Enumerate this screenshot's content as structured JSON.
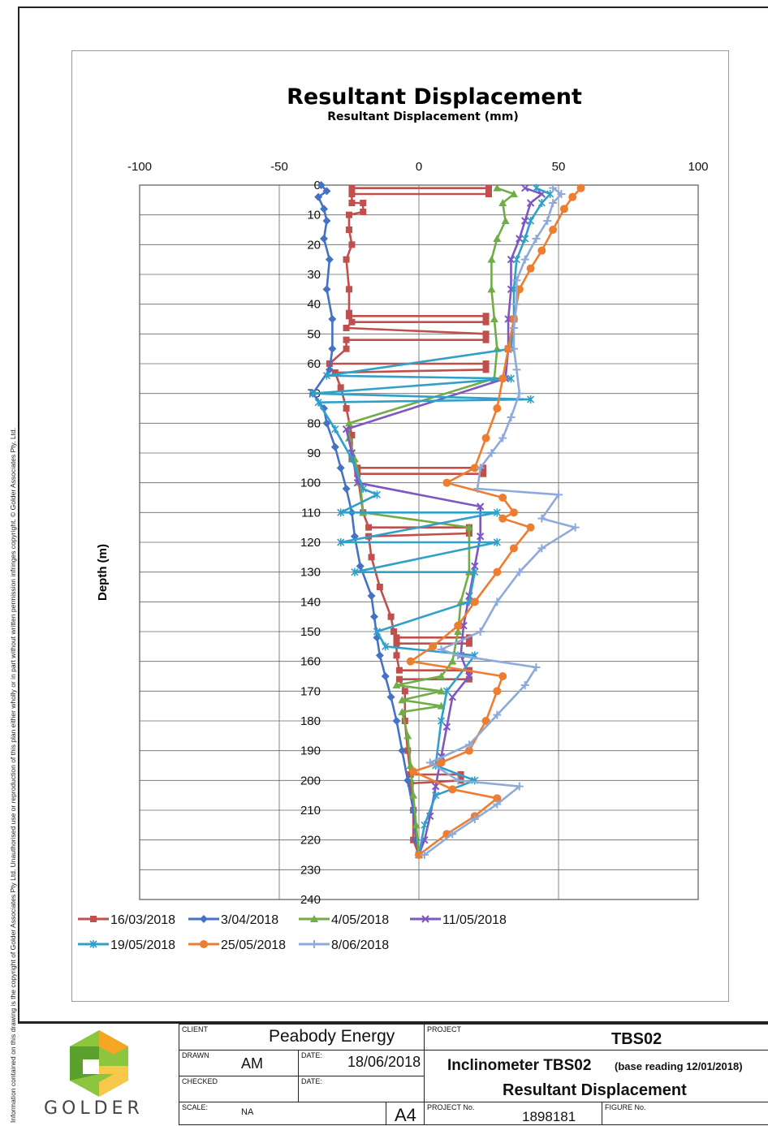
{
  "side_note": "Information contained on this drawing is the copyright of Golder Associates Pty Ltd. Unauthorised use or reproduction of this plan either wholly or in part without written permission infringes copyright. © Golder Associates Pty. Ltd.",
  "chart_data": {
    "type": "line",
    "title": "Resultant Displacement",
    "subtitle": "Resultant Displacement (mm)",
    "xlabel": "",
    "ylabel": "Depth (m)",
    "xlim": [
      -100,
      100
    ],
    "ylim": [
      0,
      240
    ],
    "y_inverted": true,
    "x_ticks": [
      -100,
      -50,
      0,
      50,
      100
    ],
    "y_ticks": [
      0,
      10,
      20,
      30,
      40,
      50,
      60,
      70,
      80,
      90,
      100,
      110,
      120,
      130,
      140,
      150,
      160,
      170,
      180,
      190,
      200,
      210,
      220,
      230,
      240
    ],
    "grid": true,
    "legend_position": "bottom",
    "series": [
      {
        "name": "16/03/2018",
        "color": "#c0504d",
        "marker": "square",
        "points": [
          [
            -24,
            1
          ],
          [
            25,
            1
          ],
          [
            25,
            3
          ],
          [
            -24,
            3
          ],
          [
            -24,
            6
          ],
          [
            -20,
            6
          ],
          [
            -20,
            9
          ],
          [
            -25,
            10
          ],
          [
            -25,
            15
          ],
          [
            -24,
            20
          ],
          [
            -26,
            25
          ],
          [
            -25,
            35
          ],
          [
            -25,
            43
          ],
          [
            -25,
            44
          ],
          [
            24,
            44
          ],
          [
            24,
            46
          ],
          [
            -24,
            46
          ],
          [
            -26,
            48
          ],
          [
            24,
            50
          ],
          [
            24,
            52
          ],
          [
            -26,
            52
          ],
          [
            -26,
            55
          ],
          [
            -32,
            60
          ],
          [
            24,
            60
          ],
          [
            24,
            62
          ],
          [
            -30,
            63
          ],
          [
            -28,
            68
          ],
          [
            -26,
            75
          ],
          [
            -24,
            84
          ],
          [
            -24,
            92
          ],
          [
            -22,
            95
          ],
          [
            23,
            95
          ],
          [
            23,
            97
          ],
          [
            -22,
            97
          ],
          [
            -20,
            110
          ],
          [
            -18,
            115
          ],
          [
            18,
            115
          ],
          [
            18,
            117
          ],
          [
            -18,
            118
          ],
          [
            -17,
            125
          ],
          [
            -14,
            135
          ],
          [
            -10,
            145
          ],
          [
            -9,
            150
          ],
          [
            -8,
            152
          ],
          [
            18,
            152
          ],
          [
            18,
            154
          ],
          [
            -8,
            154
          ],
          [
            -8,
            158
          ],
          [
            -7,
            163
          ],
          [
            18,
            163
          ],
          [
            18,
            166
          ],
          [
            -7,
            166
          ],
          [
            -5,
            170
          ],
          [
            -5,
            180
          ],
          [
            -4,
            190
          ],
          [
            -3,
            198
          ],
          [
            15,
            198
          ],
          [
            15,
            200
          ],
          [
            -3,
            201
          ],
          [
            -2,
            210
          ],
          [
            -2,
            220
          ],
          [
            0,
            225
          ]
        ]
      },
      {
        "name": "3/04/2018",
        "color": "#4472c4",
        "marker": "diamond",
        "points": [
          [
            -35,
            0
          ],
          [
            -33,
            2
          ],
          [
            -36,
            4
          ],
          [
            -34,
            8
          ],
          [
            -33,
            12
          ],
          [
            -34,
            18
          ],
          [
            -32,
            25
          ],
          [
            -33,
            35
          ],
          [
            -31,
            45
          ],
          [
            -31,
            55
          ],
          [
            -32,
            62
          ],
          [
            -38,
            70
          ],
          [
            -34,
            75
          ],
          [
            -33,
            80
          ],
          [
            -30,
            88
          ],
          [
            -28,
            95
          ],
          [
            -26,
            102
          ],
          [
            -24,
            110
          ],
          [
            -23,
            118
          ],
          [
            -21,
            128
          ],
          [
            -17,
            138
          ],
          [
            -16,
            145
          ],
          [
            -15,
            152
          ],
          [
            -14,
            158
          ],
          [
            -12,
            165
          ],
          [
            -10,
            172
          ],
          [
            -8,
            180
          ],
          [
            -6,
            190
          ],
          [
            -4,
            200
          ],
          [
            -2,
            210
          ],
          [
            -1,
            220
          ],
          [
            0,
            225
          ]
        ]
      },
      {
        "name": "4/05/2018",
        "color": "#70ad47",
        "marker": "triangle",
        "points": [
          [
            28,
            1
          ],
          [
            34,
            3
          ],
          [
            30,
            6
          ],
          [
            31,
            12
          ],
          [
            28,
            18
          ],
          [
            26,
            25
          ],
          [
            26,
            35
          ],
          [
            27,
            45
          ],
          [
            28,
            55
          ],
          [
            27,
            65
          ],
          [
            -25,
            80
          ],
          [
            -25,
            85
          ],
          [
            -23,
            92
          ],
          [
            -21,
            100
          ],
          [
            -20,
            110
          ],
          [
            18,
            115
          ],
          [
            18,
            130
          ],
          [
            15,
            140
          ],
          [
            14,
            150
          ],
          [
            12,
            160
          ],
          [
            8,
            165
          ],
          [
            -8,
            168
          ],
          [
            8,
            170
          ],
          [
            -6,
            173
          ],
          [
            8,
            175
          ],
          [
            -6,
            177
          ],
          [
            -4,
            185
          ],
          [
            -3,
            195
          ],
          [
            -2,
            205
          ],
          [
            -1,
            215
          ],
          [
            0,
            225
          ]
        ]
      },
      {
        "name": "11/05/2018",
        "color": "#7e57c2",
        "marker": "x",
        "points": [
          [
            38,
            1
          ],
          [
            44,
            3
          ],
          [
            40,
            6
          ],
          [
            38,
            12
          ],
          [
            36,
            18
          ],
          [
            33,
            25
          ],
          [
            33,
            35
          ],
          [
            32,
            45
          ],
          [
            32,
            55
          ],
          [
            31,
            65
          ],
          [
            -26,
            82
          ],
          [
            -24,
            90
          ],
          [
            -22,
            100
          ],
          [
            22,
            108
          ],
          [
            22,
            118
          ],
          [
            20,
            128
          ],
          [
            18,
            138
          ],
          [
            16,
            148
          ],
          [
            15,
            158
          ],
          [
            18,
            165
          ],
          [
            12,
            172
          ],
          [
            10,
            182
          ],
          [
            8,
            192
          ],
          [
            6,
            202
          ],
          [
            4,
            212
          ],
          [
            2,
            220
          ],
          [
            0,
            225
          ]
        ]
      },
      {
        "name": "19/05/2018",
        "color": "#31a0c8",
        "marker": "asterisk",
        "points": [
          [
            42,
            1
          ],
          [
            47,
            3
          ],
          [
            44,
            6
          ],
          [
            40,
            12
          ],
          [
            38,
            18
          ],
          [
            35,
            25
          ],
          [
            34,
            35
          ],
          [
            34,
            45
          ],
          [
            33,
            55
          ],
          [
            -33,
            64
          ],
          [
            33,
            65
          ],
          [
            -38,
            70
          ],
          [
            40,
            72
          ],
          [
            -36,
            73
          ],
          [
            -30,
            82
          ],
          [
            -24,
            92
          ],
          [
            -20,
            102
          ],
          [
            -15,
            104
          ],
          [
            -28,
            110
          ],
          [
            28,
            110
          ],
          [
            -28,
            120
          ],
          [
            28,
            120
          ],
          [
            -23,
            130
          ],
          [
            20,
            130
          ],
          [
            18,
            140
          ],
          [
            -15,
            150
          ],
          [
            -12,
            155
          ],
          [
            20,
            158
          ],
          [
            10,
            170
          ],
          [
            8,
            180
          ],
          [
            6,
            195
          ],
          [
            20,
            200
          ],
          [
            6,
            205
          ],
          [
            2,
            215
          ],
          [
            0,
            225
          ]
        ]
      },
      {
        "name": "25/05/2018",
        "color": "#ed7d31",
        "marker": "circle",
        "points": [
          [
            58,
            1
          ],
          [
            55,
            4
          ],
          [
            52,
            8
          ],
          [
            48,
            15
          ],
          [
            44,
            22
          ],
          [
            40,
            28
          ],
          [
            36,
            35
          ],
          [
            34,
            45
          ],
          [
            32,
            55
          ],
          [
            30,
            65
          ],
          [
            28,
            75
          ],
          [
            24,
            85
          ],
          [
            20,
            95
          ],
          [
            10,
            100
          ],
          [
            30,
            105
          ],
          [
            34,
            110
          ],
          [
            30,
            112
          ],
          [
            40,
            115
          ],
          [
            34,
            122
          ],
          [
            28,
            130
          ],
          [
            20,
            140
          ],
          [
            14,
            148
          ],
          [
            5,
            155
          ],
          [
            -3,
            160
          ],
          [
            30,
            165
          ],
          [
            28,
            170
          ],
          [
            24,
            180
          ],
          [
            18,
            190
          ],
          [
            8,
            194
          ],
          [
            -2,
            197
          ],
          [
            12,
            203
          ],
          [
            28,
            206
          ],
          [
            20,
            212
          ],
          [
            10,
            218
          ],
          [
            0,
            225
          ]
        ]
      },
      {
        "name": "8/06/2018",
        "color": "#8eaadb",
        "marker": "plus",
        "points": [
          [
            48,
            1
          ],
          [
            51,
            3
          ],
          [
            48,
            6
          ],
          [
            46,
            12
          ],
          [
            42,
            18
          ],
          [
            38,
            25
          ],
          [
            35,
            32
          ],
          [
            35,
            40
          ],
          [
            34,
            48
          ],
          [
            34,
            55
          ],
          [
            35,
            62
          ],
          [
            36,
            70
          ],
          [
            33,
            78
          ],
          [
            30,
            85
          ],
          [
            26,
            90
          ],
          [
            22,
            95
          ],
          [
            21,
            102
          ],
          [
            50,
            104
          ],
          [
            44,
            112
          ],
          [
            56,
            115
          ],
          [
            44,
            122
          ],
          [
            36,
            130
          ],
          [
            28,
            140
          ],
          [
            22,
            150
          ],
          [
            8,
            156
          ],
          [
            14,
            158
          ],
          [
            42,
            162
          ],
          [
            38,
            168
          ],
          [
            28,
            178
          ],
          [
            18,
            188
          ],
          [
            4,
            194
          ],
          [
            14,
            200
          ],
          [
            36,
            202
          ],
          [
            28,
            208
          ],
          [
            20,
            213
          ],
          [
            12,
            218
          ],
          [
            2,
            225
          ]
        ]
      }
    ]
  },
  "title_block": {
    "logo_text": "GOLDER",
    "client_label": "CLIENT",
    "client": "Peabody Energy",
    "project_label": "PROJECT",
    "project": "TBS02",
    "drawn_label": "DRAWN",
    "drawn": "AM",
    "date_label": "DATE:",
    "date": "18/06/2018",
    "checked_label": "CHECKED",
    "date2_label": "DATE:",
    "scale_label": "SCALE:",
    "scale": "NA",
    "size": "A4",
    "drawing_title_main": "Inclinometer TBS02",
    "drawing_title_note": "(base reading 12/01/2018)",
    "drawing_title_sub": "Resultant Displacement",
    "project_no_label": "PROJECT No.",
    "project_no": "1898181",
    "figure_no_label": "FIGURE No."
  }
}
